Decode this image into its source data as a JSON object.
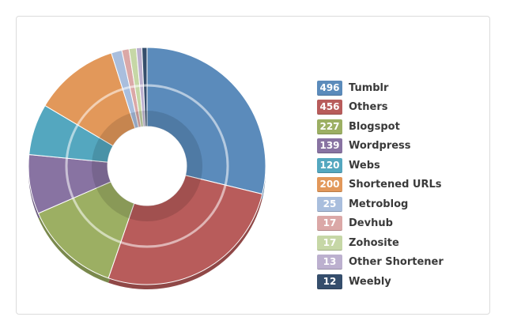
{
  "chart_data": {
    "type": "pie",
    "title": "",
    "series": [
      {
        "name": "Tumblr",
        "value": 496,
        "color": "#5b8bbb"
      },
      {
        "name": "Others",
        "value": 456,
        "color": "#b85c5b"
      },
      {
        "name": "Blogspot",
        "value": 227,
        "color": "#9caf63"
      },
      {
        "name": "Wordpress",
        "value": 139,
        "color": "#8873a2"
      },
      {
        "name": "Webs",
        "value": 120,
        "color": "#54a7bf"
      },
      {
        "name": "Shortened URLs",
        "value": 200,
        "color": "#e2985a"
      },
      {
        "name": "Metroblog",
        "value": 25,
        "color": "#a9bedd"
      },
      {
        "name": "Devhub",
        "value": 17,
        "color": "#dba8a7"
      },
      {
        "name": "Zohosite",
        "value": 17,
        "color": "#c6d7a6"
      },
      {
        "name": "Other Shortener",
        "value": 13,
        "color": "#bcb0cf"
      },
      {
        "name": "Weebly",
        "value": 12,
        "color": "#354e6c"
      }
    ],
    "legend": "right"
  }
}
